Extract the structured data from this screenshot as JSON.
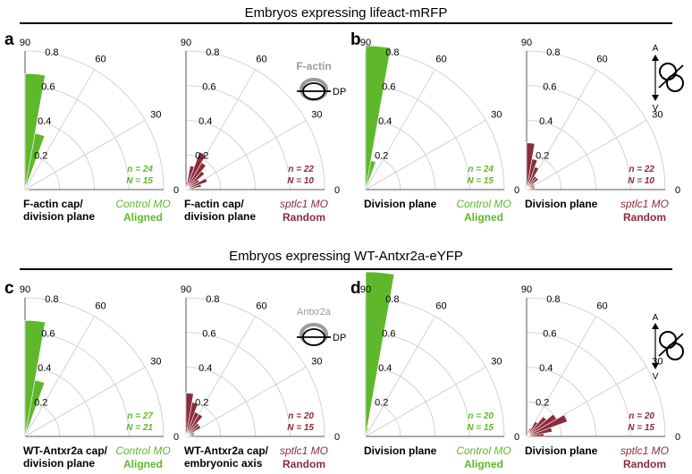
{
  "sections": [
    {
      "title": "Embryos expressing lifeact-mRFP"
    },
    {
      "title": "Embryos expressing WT-Antxr2a-eYFP"
    }
  ],
  "panels": [
    {
      "letter": "a"
    },
    {
      "letter": "b"
    },
    {
      "letter": "c"
    },
    {
      "letter": "d"
    }
  ],
  "colors": {
    "aligned": "#5fb82b",
    "random": "#8a2c3b",
    "schematic_gray": "#9a9a9a"
  },
  "schematics": [
    {
      "label": "F-actin",
      "dp": "DP"
    },
    {
      "label": "Antxr2a",
      "dp": "DP"
    }
  ],
  "axis_schematics": [
    {
      "a": "A",
      "v": "V"
    },
    {
      "a": "A",
      "v": "V"
    }
  ],
  "chart_data": [
    {
      "type": "polar-bar",
      "panel": "a",
      "theta_unit": "degrees",
      "theta_range": [
        0,
        90
      ],
      "r_range": [
        0,
        0.8
      ],
      "angle_labels": [
        "90",
        "60",
        "30",
        "0"
      ],
      "r_labels": [
        "0.2",
        "0.4",
        "0.6",
        "0.8"
      ],
      "bins": [
        {
          "from": 0,
          "to": 10,
          "value": 0.02
        },
        {
          "from": 10,
          "to": 20,
          "value": 0.0
        },
        {
          "from": 20,
          "to": 30,
          "value": 0.0
        },
        {
          "from": 30,
          "to": 40,
          "value": 0.0
        },
        {
          "from": 40,
          "to": 50,
          "value": 0.0
        },
        {
          "from": 50,
          "to": 60,
          "value": 0.0
        },
        {
          "from": 60,
          "to": 70,
          "value": 0.0
        },
        {
          "from": 70,
          "to": 80,
          "value": 0.33
        },
        {
          "from": 80,
          "to": 90,
          "value": 0.67
        }
      ],
      "color": "#5fb82b",
      "xlabel": "F-actin cap/\ndivision plane",
      "condition": "Control MO",
      "n": "n = 24",
      "N": "N = 15",
      "result": "Aligned"
    },
    {
      "type": "polar-bar",
      "panel": "a",
      "theta_unit": "degrees",
      "theta_range": [
        0,
        90
      ],
      "r_range": [
        0,
        0.8
      ],
      "angle_labels": [
        "90",
        "60",
        "30",
        "0"
      ],
      "r_labels": [
        "0.2",
        "0.4",
        "0.6",
        "0.8"
      ],
      "bins": [
        {
          "from": 0,
          "to": 10,
          "value": 0.05
        },
        {
          "from": 10,
          "to": 20,
          "value": 0.09
        },
        {
          "from": 20,
          "to": 30,
          "value": 0.13
        },
        {
          "from": 30,
          "to": 40,
          "value": 0.09
        },
        {
          "from": 40,
          "to": 50,
          "value": 0.14
        },
        {
          "from": 50,
          "to": 60,
          "value": 0.18
        },
        {
          "from": 60,
          "to": 70,
          "value": 0.23
        },
        {
          "from": 70,
          "to": 80,
          "value": 0.14
        },
        {
          "from": 80,
          "to": 90,
          "value": 0.05
        }
      ],
      "color": "#8a2c3b",
      "xlabel": "F-actin cap/\ndivision plane",
      "condition": "sptlc1 MO",
      "n": "n = 22",
      "N": "N = 10",
      "result": "Random"
    },
    {
      "type": "polar-bar",
      "panel": "b",
      "theta_unit": "degrees",
      "theta_range": [
        0,
        90
      ],
      "r_range": [
        0,
        0.8
      ],
      "angle_labels": [
        "90",
        "60",
        "30",
        "0"
      ],
      "r_labels": [
        "0.2",
        "0.4",
        "0.6",
        "0.8"
      ],
      "bins": [
        {
          "from": 0,
          "to": 10,
          "value": 0.0
        },
        {
          "from": 10,
          "to": 20,
          "value": 0.0
        },
        {
          "from": 20,
          "to": 30,
          "value": 0.0
        },
        {
          "from": 30,
          "to": 40,
          "value": 0.0
        },
        {
          "from": 40,
          "to": 50,
          "value": 0.0
        },
        {
          "from": 50,
          "to": 60,
          "value": 0.0
        },
        {
          "from": 60,
          "to": 70,
          "value": 0.0
        },
        {
          "from": 70,
          "to": 80,
          "value": 0.17
        },
        {
          "from": 80,
          "to": 90,
          "value": 0.83
        }
      ],
      "color": "#5fb82b",
      "xlabel": "Division plane",
      "condition": "Control MO",
      "n": "n = 24",
      "N": "N = 15",
      "result": "Aligned"
    },
    {
      "type": "polar-bar",
      "panel": "b",
      "theta_unit": "degrees",
      "theta_range": [
        0,
        90
      ],
      "r_range": [
        0,
        0.8
      ],
      "angle_labels": [
        "90",
        "60",
        "30",
        "0"
      ],
      "r_labels": [
        "0.2",
        "0.4",
        "0.6",
        "0.8"
      ],
      "bins": [
        {
          "from": 0,
          "to": 10,
          "value": 0.05
        },
        {
          "from": 10,
          "to": 20,
          "value": 0.05
        },
        {
          "from": 20,
          "to": 30,
          "value": 0.05
        },
        {
          "from": 30,
          "to": 40,
          "value": 0.05
        },
        {
          "from": 40,
          "to": 50,
          "value": 0.09
        },
        {
          "from": 50,
          "to": 60,
          "value": 0.09
        },
        {
          "from": 60,
          "to": 70,
          "value": 0.14
        },
        {
          "from": 70,
          "to": 80,
          "value": 0.18
        },
        {
          "from": 80,
          "to": 90,
          "value": 0.27
        }
      ],
      "color": "#8a2c3b",
      "xlabel": "Division plane",
      "condition": "sptlc1 MO",
      "n": "n = 22",
      "N": "N = 10",
      "result": "Random"
    },
    {
      "type": "polar-bar",
      "panel": "c",
      "theta_unit": "degrees",
      "theta_range": [
        0,
        90
      ],
      "r_range": [
        0,
        0.8
      ],
      "angle_labels": [
        "90",
        "60",
        "30",
        "0"
      ],
      "r_labels": [
        "0.2",
        "0.4",
        "0.6",
        "0.8"
      ],
      "bins": [
        {
          "from": 0,
          "to": 10,
          "value": 0.0
        },
        {
          "from": 10,
          "to": 20,
          "value": 0.0
        },
        {
          "from": 20,
          "to": 30,
          "value": 0.0
        },
        {
          "from": 30,
          "to": 40,
          "value": 0.0
        },
        {
          "from": 40,
          "to": 50,
          "value": 0.0
        },
        {
          "from": 50,
          "to": 60,
          "value": 0.0
        },
        {
          "from": 60,
          "to": 70,
          "value": 0.0
        },
        {
          "from": 70,
          "to": 80,
          "value": 0.33
        },
        {
          "from": 80,
          "to": 90,
          "value": 0.67
        }
      ],
      "color": "#5fb82b",
      "xlabel": "WT-Antxr2a cap/\ndivision plane",
      "condition": "Control MO",
      "n": "n = 27",
      "N": "N = 21",
      "result": "Aligned"
    },
    {
      "type": "polar-bar",
      "panel": "c",
      "theta_unit": "degrees",
      "theta_range": [
        0,
        90
      ],
      "r_range": [
        0,
        0.8
      ],
      "angle_labels": [
        "90",
        "60",
        "30",
        "0"
      ],
      "r_labels": [
        "0.2",
        "0.4",
        "0.6",
        "0.8"
      ],
      "bins": [
        {
          "from": 0,
          "to": 10,
          "value": 0.05
        },
        {
          "from": 10,
          "to": 20,
          "value": 0.05
        },
        {
          "from": 20,
          "to": 30,
          "value": 0.05
        },
        {
          "from": 30,
          "to": 40,
          "value": 0.1
        },
        {
          "from": 40,
          "to": 50,
          "value": 0.1
        },
        {
          "from": 50,
          "to": 60,
          "value": 0.15
        },
        {
          "from": 60,
          "to": 70,
          "value": 0.15
        },
        {
          "from": 70,
          "to": 80,
          "value": 0.2
        },
        {
          "from": 80,
          "to": 90,
          "value": 0.25
        }
      ],
      "color": "#8a2c3b",
      "xlabel": "WT-Antxr2a cap/\nembryonic axis",
      "condition": "sptlc1 MO",
      "n": "n = 20",
      "N": "N = 15",
      "result": "Random"
    },
    {
      "type": "polar-bar",
      "panel": "d",
      "theta_unit": "degrees",
      "theta_range": [
        0,
        90
      ],
      "r_range": [
        0,
        0.8
      ],
      "angle_labels": [
        "90",
        "60",
        "30",
        "0"
      ],
      "r_labels": [
        "0.2",
        "0.4",
        "0.6",
        "0.8"
      ],
      "bins": [
        {
          "from": 0,
          "to": 10,
          "value": 0.0
        },
        {
          "from": 10,
          "to": 20,
          "value": 0.0
        },
        {
          "from": 20,
          "to": 30,
          "value": 0.0
        },
        {
          "from": 30,
          "to": 40,
          "value": 0.0
        },
        {
          "from": 40,
          "to": 50,
          "value": 0.0
        },
        {
          "from": 50,
          "to": 60,
          "value": 0.0
        },
        {
          "from": 60,
          "to": 70,
          "value": 0.0
        },
        {
          "from": 70,
          "to": 80,
          "value": 0.05
        },
        {
          "from": 80,
          "to": 90,
          "value": 0.95
        }
      ],
      "color": "#5fb82b",
      "xlabel": "Division plane",
      "condition": "Control MO",
      "n": "n = 20",
      "N": "N = 15",
      "result": "Aligned"
    },
    {
      "type": "polar-bar",
      "panel": "d",
      "theta_unit": "degrees",
      "theta_range": [
        0,
        90
      ],
      "r_range": [
        0,
        0.8
      ],
      "angle_labels": [
        "90",
        "60",
        "30",
        "0"
      ],
      "r_labels": [
        "0.2",
        "0.4",
        "0.6",
        "0.8"
      ],
      "bins": [
        {
          "from": 0,
          "to": 10,
          "value": 0.1
        },
        {
          "from": 10,
          "to": 20,
          "value": 0.15
        },
        {
          "from": 20,
          "to": 30,
          "value": 0.25
        },
        {
          "from": 30,
          "to": 40,
          "value": 0.2
        },
        {
          "from": 40,
          "to": 50,
          "value": 0.15
        },
        {
          "from": 50,
          "to": 60,
          "value": 0.1
        },
        {
          "from": 60,
          "to": 70,
          "value": 0.05
        },
        {
          "from": 70,
          "to": 80,
          "value": 0.0
        },
        {
          "from": 80,
          "to": 90,
          "value": 0.0
        }
      ],
      "color": "#8a2c3b",
      "xlabel": "Division plane",
      "condition": "sptlc1 MO",
      "n": "n = 20",
      "N": "N = 15",
      "result": "Random"
    }
  ]
}
